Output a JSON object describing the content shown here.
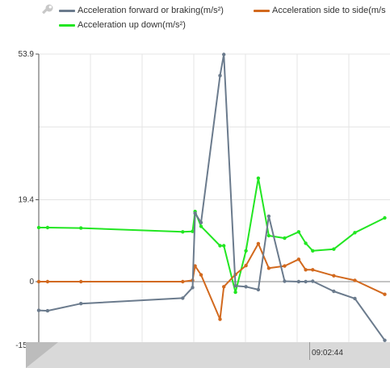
{
  "legend": {
    "forward_label": "Acceleration forward or braking(m/s²)",
    "side_label": "Acceleration side to side(m/s",
    "updown_label": "Acceleration up down(m/s²)"
  },
  "icons": {
    "tool": "wrench-icon"
  },
  "colors": {
    "forward": "#6b7b8d",
    "side": "#d2691e",
    "updown": "#22e622",
    "grid": "#e4e4e4",
    "axis": "#555555"
  },
  "time_label": "09:02:44",
  "chart_data": {
    "type": "line",
    "xlim": [
      0,
      100
    ],
    "ylim": [
      -15.1,
      53.9
    ],
    "yticks": [
      "53.9",
      "19.4",
      "0",
      "-15.1"
    ],
    "ytick_values": [
      53.9,
      19.4,
      0,
      -15.1
    ],
    "grid": true,
    "legend_position": "top",
    "series": [
      {
        "name": "Acceleration forward or braking(m/s²)",
        "color": "#6b7b8d",
        "points": [
          [
            0,
            -6.8
          ],
          [
            2.5,
            -6.9
          ],
          [
            12,
            -5.2
          ],
          [
            41,
            -3.9
          ],
          [
            43.8,
            -1.4
          ],
          [
            44.5,
            16.2
          ],
          [
            46.2,
            14.0
          ],
          [
            51.6,
            48.8
          ],
          [
            52.7,
            53.8
          ],
          [
            56,
            -1.0
          ],
          [
            59,
            -1.2
          ],
          [
            62.5,
            -1.9
          ],
          [
            65.5,
            15.5
          ],
          [
            70,
            0.1
          ],
          [
            74,
            0.0
          ],
          [
            76,
            0.0
          ],
          [
            78,
            0.1
          ],
          [
            84,
            -2.3
          ],
          [
            90,
            -4.0
          ],
          [
            98.5,
            -13.9
          ]
        ]
      },
      {
        "name": "Acceleration side to side(m/s",
        "color": "#d2691e",
        "points": [
          [
            0,
            0.0
          ],
          [
            2.5,
            0.0
          ],
          [
            12,
            0.0
          ],
          [
            41,
            0.0
          ],
          [
            43.8,
            0.3
          ],
          [
            44.5,
            3.7
          ],
          [
            46.2,
            1.6
          ],
          [
            51.6,
            -8.9
          ],
          [
            52.7,
            -1.2
          ],
          [
            56,
            1.7
          ],
          [
            59,
            3.8
          ],
          [
            62.5,
            9.0
          ],
          [
            65.5,
            3.2
          ],
          [
            70,
            3.7
          ],
          [
            74,
            5.3
          ],
          [
            76,
            2.8
          ],
          [
            78,
            2.8
          ],
          [
            84,
            1.4
          ],
          [
            90,
            0.3
          ],
          [
            98.5,
            -3.0
          ]
        ]
      },
      {
        "name": "Acceleration up down(m/s²)",
        "color": "#22e622",
        "points": [
          [
            0,
            12.8
          ],
          [
            2.5,
            12.8
          ],
          [
            12,
            12.7
          ],
          [
            41,
            11.8
          ],
          [
            43.8,
            11.9
          ],
          [
            44.5,
            16.6
          ],
          [
            46.2,
            13.1
          ],
          [
            51.6,
            8.5
          ],
          [
            52.7,
            8.5
          ],
          [
            56,
            -2.5
          ],
          [
            59,
            7.3
          ],
          [
            62.5,
            24.5
          ],
          [
            65.5,
            10.9
          ],
          [
            70,
            10.3
          ],
          [
            74,
            11.8
          ],
          [
            76,
            9.1
          ],
          [
            78,
            7.3
          ],
          [
            84,
            7.7
          ],
          [
            90,
            11.6
          ],
          [
            98.5,
            15.1
          ]
        ]
      }
    ]
  }
}
